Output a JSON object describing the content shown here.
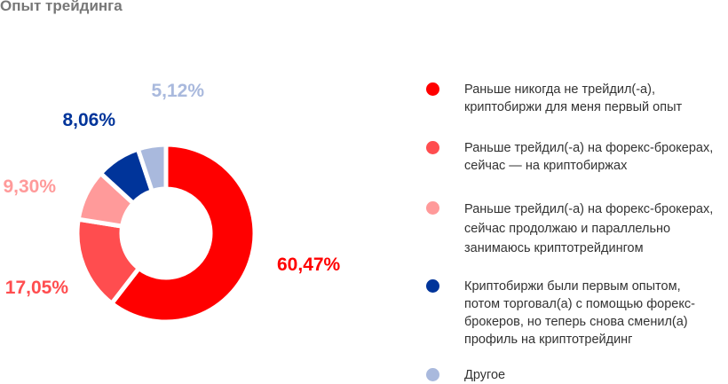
{
  "title": "Опыт трейдинга",
  "chart_data": {
    "type": "pie",
    "donut": true,
    "start": "top, clockwise",
    "values": [
      60.47,
      17.05,
      9.3,
      8.06,
      5.12
    ],
    "labels": [
      "60,47%",
      "17,05%",
      "9,30%",
      "8,06%",
      "5,12%"
    ],
    "colors": [
      "#ff0000",
      "#ff4d4f",
      "#ff9a9a",
      "#00349a",
      "#a9b9dd"
    ],
    "legend_placement": "right",
    "legend": [
      "Раньше никогда не трейдил(-а),\nкриптобиржи для меня первый опыт",
      "Раньше трейдил(-а) на форекс-брокерах,\nсейчас — на криптобиржах",
      "Раньше трейдил(-а) на форекс-брокерах,\nсейчас продолжаю и параллельно\nзанимаюсь криптотрейдингом",
      "Криптобиржи были первым опытом,\nпотом торговал(а) с помощью форекс-\nброкеров, но теперь снова сменил(а)\nпрофиль на криптотрейдинг",
      "Другое"
    ]
  }
}
